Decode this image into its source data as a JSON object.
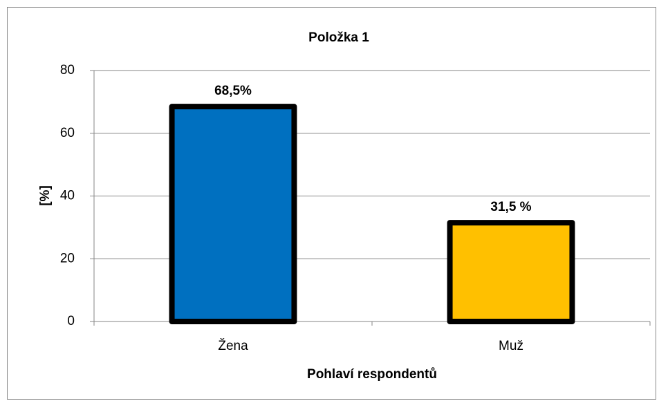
{
  "chart_data": {
    "type": "bar",
    "title": "Položka 1",
    "y_label": "[%]",
    "x_label": "Pohlaví respondentů",
    "categories": [
      "Žena",
      "Muž"
    ],
    "values": [
      68.5,
      31.5
    ],
    "value_labels": [
      "68,5%",
      "31,5 %"
    ],
    "colors": [
      "#0070c0",
      "#ffc000"
    ],
    "ylim": [
      0,
      80
    ],
    "yticks": [
      0,
      20,
      40,
      60,
      80
    ],
    "grid": true
  }
}
